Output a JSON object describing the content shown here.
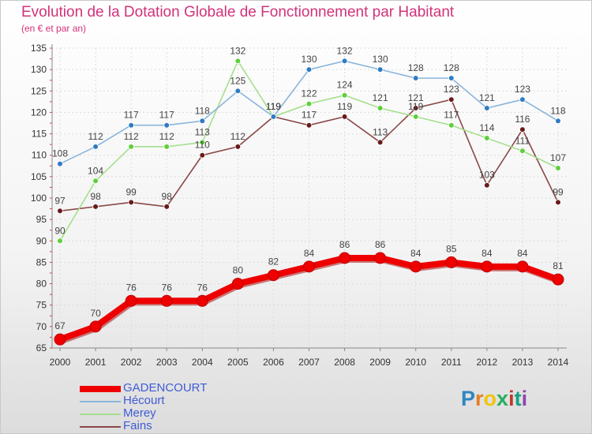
{
  "title": "Evolution de la Dotation Globale de Fonctionnement par Habitant",
  "subtitle": "(en € et par an)",
  "logo_text": "Proxiti",
  "chart_data": {
    "type": "line",
    "title": "Evolution de la Dotation Globale de Fonctionnement par Habitant",
    "subtitle": "(en € et par an)",
    "xlabel": "",
    "ylabel": "",
    "ylim": [
      65,
      135
    ],
    "yticks": [
      65,
      70,
      75,
      80,
      85,
      90,
      95,
      100,
      105,
      110,
      115,
      120,
      125,
      130,
      135
    ],
    "grid": true,
    "categories": [
      "2000",
      "2001",
      "2002",
      "2003",
      "2004",
      "2005",
      "2006",
      "2007",
      "2008",
      "2009",
      "2010",
      "2011",
      "2012",
      "2013",
      "2014"
    ],
    "series": [
      {
        "name": "GADENCOURT",
        "color": "#ee0000",
        "emphasis": true,
        "values": [
          67,
          70,
          76,
          76,
          76,
          80,
          82,
          84,
          86,
          86,
          84,
          85,
          84,
          84,
          81
        ]
      },
      {
        "name": "Hécourt",
        "color": "#2f7bc4",
        "line_color": "#89b5dc",
        "values": [
          108,
          112,
          117,
          117,
          118,
          125,
          119,
          130,
          132,
          130,
          128,
          128,
          121,
          123,
          118
        ]
      },
      {
        "name": "Merey",
        "color": "#5fcf3a",
        "line_color": "#a5df8c",
        "values": [
          90,
          104,
          112,
          112,
          113,
          132,
          119,
          122,
          124,
          121,
          119,
          117,
          114,
          111,
          107
        ]
      },
      {
        "name": "Fains",
        "color": "#6a1a1a",
        "line_color": "#8a4747",
        "values": [
          97,
          98,
          99,
          98,
          110,
          112,
          119,
          117,
          119,
          113,
          121,
          123,
          103,
          116,
          99
        ]
      }
    ],
    "legend_position": "bottom-left"
  }
}
